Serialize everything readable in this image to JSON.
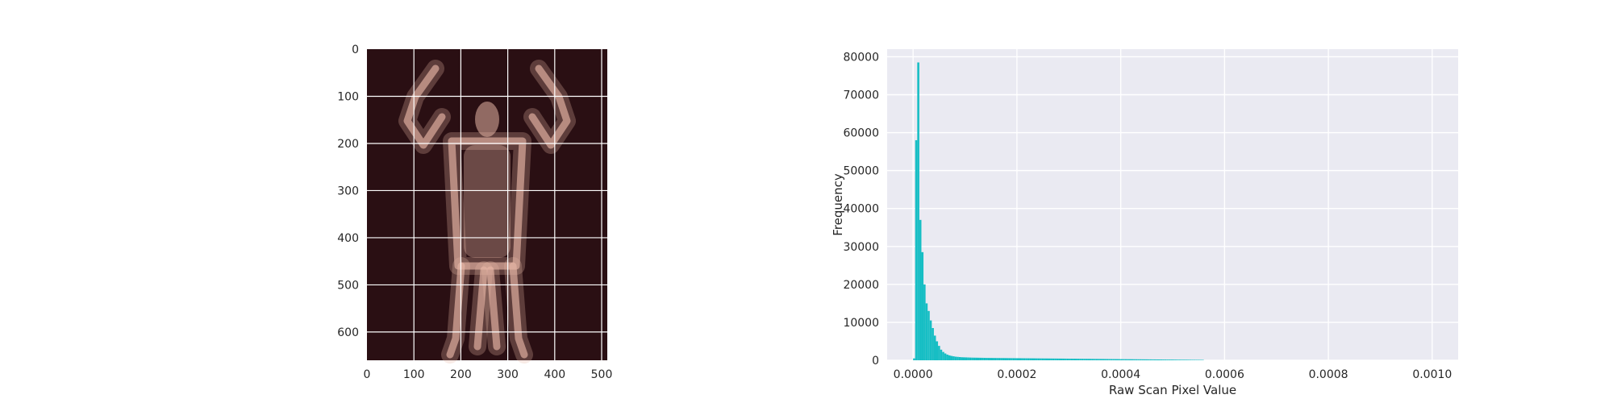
{
  "chart_data": [
    {
      "type": "image",
      "title": "",
      "xlabel": "",
      "ylabel": "",
      "xlim": [
        0,
        512
      ],
      "ylim": [
        660,
        0
      ],
      "x_ticks": [
        0,
        100,
        200,
        300,
        400,
        500
      ],
      "y_ticks": [
        0,
        100,
        200,
        300,
        400,
        500,
        600
      ],
      "x_tick_labels": [
        "0",
        "100",
        "200",
        "300",
        "400",
        "500"
      ],
      "y_tick_labels": [
        "0",
        "100",
        "200",
        "300",
        "400",
        "500",
        "600"
      ],
      "grid": true,
      "colormap": "dark-red-to-pink",
      "background_color": "#2a0f13",
      "figure_color": "#e6b6a6"
    },
    {
      "type": "bar",
      "title": "",
      "xlabel": "Raw Scan Pixel Value",
      "ylabel": "Frequency",
      "xlim": [
        -5e-05,
        0.00105
      ],
      "ylim": [
        0,
        82000
      ],
      "x_ticks": [
        0.0,
        0.0002,
        0.0004,
        0.0006,
        0.0008,
        0.001
      ],
      "x_tick_labels": [
        "0.0000",
        "0.0002",
        "0.0004",
        "0.0006",
        "0.0008",
        "0.0010"
      ],
      "y_ticks": [
        0,
        10000,
        20000,
        30000,
        40000,
        50000,
        60000,
        70000,
        80000
      ],
      "y_tick_labels": [
        "0",
        "10000",
        "20000",
        "30000",
        "40000",
        "50000",
        "60000",
        "70000",
        "80000"
      ],
      "grid": true,
      "bar_color": "#17bec4",
      "plot_background": "#eaeaf2",
      "bin_width": 4e-06,
      "bin_start": 0.0,
      "values": [
        500,
        58000,
        78500,
        37000,
        28500,
        20000,
        15000,
        13000,
        10500,
        8500,
        6500,
        5000,
        3800,
        2800,
        2200,
        1800,
        1500,
        1300,
        1150,
        1050,
        950,
        900,
        850,
        800,
        780,
        760,
        740,
        720,
        700,
        690,
        680,
        670,
        660,
        650,
        640,
        630,
        620,
        615,
        610,
        605,
        600,
        595,
        590,
        585,
        580,
        575,
        570,
        565,
        560,
        555,
        550,
        545,
        540,
        535,
        530,
        525,
        520,
        515,
        510,
        505,
        500,
        495,
        490,
        485,
        480,
        475,
        470,
        465,
        460,
        455,
        450,
        445,
        440,
        435,
        430,
        425,
        420,
        415,
        410,
        405,
        400,
        395,
        390,
        385,
        380,
        375,
        370,
        365,
        360,
        355,
        350,
        345,
        340,
        335,
        330,
        325,
        320,
        315,
        310,
        305,
        300,
        295,
        290,
        285,
        280,
        275,
        270,
        265,
        260,
        255,
        250,
        245,
        240,
        235,
        230,
        225,
        220,
        215,
        210,
        205,
        200,
        195,
        190,
        185,
        180,
        175,
        170,
        165,
        160,
        155,
        150,
        145,
        140,
        135,
        130,
        125,
        120,
        115,
        110,
        105
      ]
    }
  ]
}
